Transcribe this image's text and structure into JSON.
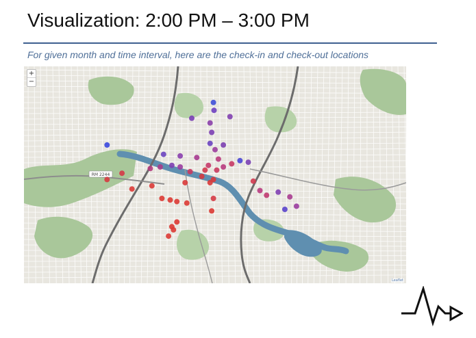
{
  "slide": {
    "title": "Visualization: 2:00 PM – 3:00 PM",
    "subtitle": "For given month and time interval, here are the check-in and check-out locations"
  },
  "map": {
    "zoom_in_label": "+",
    "zoom_out_label": "−",
    "attribution": "Leaflet",
    "road_label": "RM 2244",
    "colors": {
      "land": "#e8e6df",
      "park": "#a9c79a",
      "park_dark": "#8fb583",
      "water": "#5f8fb0",
      "road": "#ffffff",
      "highway": "#6c6c6c"
    },
    "markers": [
      {
        "lat": 30.2905,
        "lon": -97.733,
        "color": "#3f4fd8"
      },
      {
        "lat": 30.288,
        "lon": -97.7328,
        "color": "#6f40c0"
      },
      {
        "lat": 30.2855,
        "lon": -97.7395,
        "color": "#7a3fb6"
      },
      {
        "lat": 30.286,
        "lon": -97.728,
        "color": "#8240b0"
      },
      {
        "lat": 30.284,
        "lon": -97.734,
        "color": "#8a3faa"
      },
      {
        "lat": 30.281,
        "lon": -97.7335,
        "color": "#7c3fb4"
      },
      {
        "lat": 30.277,
        "lon": -97.765,
        "color": "#3a48de"
      },
      {
        "lat": 30.2775,
        "lon": -97.734,
        "color": "#6a42c0"
      },
      {
        "lat": 30.277,
        "lon": -97.73,
        "color": "#7c3fb0"
      },
      {
        "lat": 30.2755,
        "lon": -97.7325,
        "color": "#9b3c9c"
      },
      {
        "lat": 30.274,
        "lon": -97.748,
        "color": "#6a44c0"
      },
      {
        "lat": 30.2735,
        "lon": -97.743,
        "color": "#8a3fae"
      },
      {
        "lat": 30.273,
        "lon": -97.738,
        "color": "#a63a90"
      },
      {
        "lat": 30.2725,
        "lon": -97.7315,
        "color": "#b93a7c"
      },
      {
        "lat": 30.272,
        "lon": -97.725,
        "color": "#4a46d4"
      },
      {
        "lat": 30.2715,
        "lon": -97.7225,
        "color": "#7a40b4"
      },
      {
        "lat": 30.2705,
        "lon": -97.7455,
        "color": "#7f40b2"
      },
      {
        "lat": 30.27,
        "lon": -97.743,
        "color": "#9a3da0"
      },
      {
        "lat": 30.27,
        "lon": -97.749,
        "color": "#a93c8a"
      },
      {
        "lat": 30.2705,
        "lon": -97.7345,
        "color": "#c53a6a"
      },
      {
        "lat": 30.27,
        "lon": -97.73,
        "color": "#b83b80"
      },
      {
        "lat": 30.271,
        "lon": -97.7275,
        "color": "#c63b66"
      },
      {
        "lat": 30.2695,
        "lon": -97.752,
        "color": "#b43c80"
      },
      {
        "lat": 30.269,
        "lon": -97.7355,
        "color": "#d23a4e"
      },
      {
        "lat": 30.269,
        "lon": -97.732,
        "color": "#c93a5e"
      },
      {
        "lat": 30.2685,
        "lon": -97.74,
        "color": "#c83a60"
      },
      {
        "lat": 30.268,
        "lon": -97.7605,
        "color": "#d43a48"
      },
      {
        "lat": 30.267,
        "lon": -97.7365,
        "color": "#d63a40"
      },
      {
        "lat": 30.266,
        "lon": -97.733,
        "color": "#d83a3c"
      },
      {
        "lat": 30.2655,
        "lon": -97.721,
        "color": "#d03a50"
      },
      {
        "lat": 30.265,
        "lon": -97.7415,
        "color": "#d93a3a"
      },
      {
        "lat": 30.265,
        "lon": -97.734,
        "color": "#da3a38"
      },
      {
        "lat": 30.266,
        "lon": -97.765,
        "color": "#d63a40"
      },
      {
        "lat": 30.264,
        "lon": -97.7515,
        "color": "#db3a36"
      },
      {
        "lat": 30.263,
        "lon": -97.7575,
        "color": "#db3a36"
      },
      {
        "lat": 30.2625,
        "lon": -97.719,
        "color": "#b83b80"
      },
      {
        "lat": 30.262,
        "lon": -97.7135,
        "color": "#7f40b2"
      },
      {
        "lat": 30.261,
        "lon": -97.717,
        "color": "#c03a70"
      },
      {
        "lat": 30.2605,
        "lon": -97.71,
        "color": "#a83c90"
      },
      {
        "lat": 30.26,
        "lon": -97.7485,
        "color": "#dc3a34"
      },
      {
        "lat": 30.2595,
        "lon": -97.746,
        "color": "#dc3a34"
      },
      {
        "lat": 30.259,
        "lon": -97.744,
        "color": "#dc3a34"
      },
      {
        "lat": 30.26,
        "lon": -97.733,
        "color": "#d53a44"
      },
      {
        "lat": 30.2585,
        "lon": -97.741,
        "color": "#dc3a34"
      },
      {
        "lat": 30.2575,
        "lon": -97.708,
        "color": "#9a3da0"
      },
      {
        "lat": 30.2565,
        "lon": -97.7115,
        "color": "#5a44cc"
      },
      {
        "lat": 30.256,
        "lon": -97.7335,
        "color": "#dc3a34"
      },
      {
        "lat": 30.2525,
        "lon": -97.744,
        "color": "#dc3a34"
      },
      {
        "lat": 30.251,
        "lon": -97.7455,
        "color": "#dc3a34"
      },
      {
        "lat": 30.25,
        "lon": -97.745,
        "color": "#dc3a34"
      },
      {
        "lat": 30.248,
        "lon": -97.7465,
        "color": "#dc3a34"
      }
    ]
  }
}
